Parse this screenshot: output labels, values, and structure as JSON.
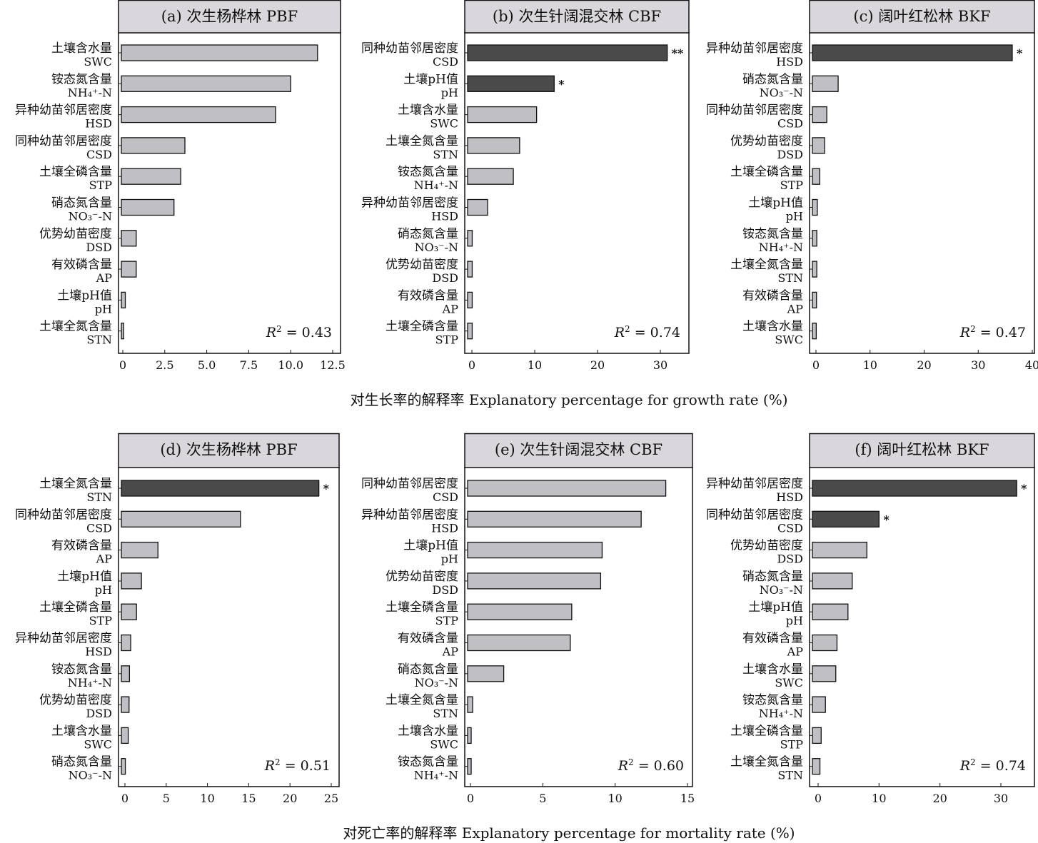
{
  "colors": {
    "bar_default": "#c0bfc4",
    "bar_significant": "#4a4a4a",
    "title_fill": "#d9d7db"
  },
  "chart_data": [
    {
      "type": "bar",
      "orientation": "horizontal",
      "title": "(a) 次生杨桦林 PBF",
      "r2_label": "R",
      "r2_value": "= 0.43",
      "xlim": [
        0,
        12.5
      ],
      "xticks": [
        "0",
        "2.5",
        "5.0",
        "7.5",
        "10.0",
        "12.5"
      ],
      "xtick_values": [
        0,
        2.5,
        5,
        7.5,
        10,
        12.5
      ],
      "bars": [
        {
          "cn": "土壤含水量",
          "en": "SWC",
          "value": 11.6,
          "sig": ""
        },
        {
          "cn": "铵态氮含量",
          "en": "NH₄⁺-N",
          "value": 10.0,
          "sig": ""
        },
        {
          "cn": "异种幼苗邻居密度",
          "en": "HSD",
          "value": 9.1,
          "sig": ""
        },
        {
          "cn": "同种幼苗邻居密度",
          "en": "CSD",
          "value": 3.7,
          "sig": ""
        },
        {
          "cn": "土壤全磷含量",
          "en": "STP",
          "value": 3.45,
          "sig": ""
        },
        {
          "cn": "硝态氮含量",
          "en": "NO₃⁻-N",
          "value": 3.05,
          "sig": ""
        },
        {
          "cn": "优势幼苗密度",
          "en": "DSD",
          "value": 0.8,
          "sig": ""
        },
        {
          "cn": "有效磷含量",
          "en": "AP",
          "value": 0.8,
          "sig": ""
        },
        {
          "cn": "土壤pH值",
          "en": "pH",
          "value": 0.15,
          "sig": ""
        },
        {
          "cn": "土壤全氮含量",
          "en": "STN",
          "value": 0.05,
          "sig": ""
        }
      ]
    },
    {
      "type": "bar",
      "orientation": "horizontal",
      "title": "(b) 次生针阔混交林 CBF",
      "r2_label": "R",
      "r2_value": "= 0.74",
      "xlim": [
        0,
        35
      ],
      "xticks": [
        "0",
        "10",
        "20",
        "30"
      ],
      "xtick_values": [
        0,
        10,
        20,
        30
      ],
      "bars": [
        {
          "cn": "同种幼苗邻居密度",
          "en": "CSD",
          "value": 31.1,
          "sig": "**"
        },
        {
          "cn": "土壤pH值",
          "en": "pH",
          "value": 13.1,
          "sig": "*"
        },
        {
          "cn": "土壤含水量",
          "en": "SWC",
          "value": 10.3,
          "sig": ""
        },
        {
          "cn": "土壤全氮含量",
          "en": "STN",
          "value": 7.6,
          "sig": ""
        },
        {
          "cn": "铵态氮含量",
          "en": "NH₄⁺-N",
          "value": 6.6,
          "sig": ""
        },
        {
          "cn": "异种幼苗邻居密度",
          "en": "HSD",
          "value": 2.5,
          "sig": ""
        },
        {
          "cn": "硝态氮含量",
          "en": "NO₃⁻-N",
          "value": 0.05,
          "sig": ""
        },
        {
          "cn": "优势幼苗密度",
          "en": "DSD",
          "value": 0.05,
          "sig": ""
        },
        {
          "cn": "有效磷含量",
          "en": "AP",
          "value": 0.05,
          "sig": ""
        },
        {
          "cn": "土壤全磷含量",
          "en": "STP",
          "value": 0.05,
          "sig": ""
        }
      ]
    },
    {
      "type": "bar",
      "orientation": "horizontal",
      "title": "(c) 阔叶红松林 BKF",
      "r2_label": "R",
      "r2_value": "= 0.47",
      "xlim": [
        0,
        40
      ],
      "xticks": [
        "0",
        "10",
        "20",
        "30",
        "40"
      ],
      "xtick_values": [
        0,
        10,
        20,
        30,
        40
      ],
      "bars": [
        {
          "cn": "异种幼苗邻居密度",
          "en": "HSD",
          "value": 36.3,
          "sig": "*"
        },
        {
          "cn": "硝态氮含量",
          "en": "NO₃⁻-N",
          "value": 4.1,
          "sig": ""
        },
        {
          "cn": "同种幼苗邻居密度",
          "en": "CSD",
          "value": 2.0,
          "sig": ""
        },
        {
          "cn": "优势幼苗密度",
          "en": "DSD",
          "value": 1.6,
          "sig": ""
        },
        {
          "cn": "土壤全磷含量",
          "en": "STP",
          "value": 0.7,
          "sig": ""
        },
        {
          "cn": "土壤pH值",
          "en": "pH",
          "value": 0.25,
          "sig": ""
        },
        {
          "cn": "铵态氮含量",
          "en": "NH₄⁺-N",
          "value": 0.15,
          "sig": ""
        },
        {
          "cn": "土壤全氮含量",
          "en": "STN",
          "value": 0.15,
          "sig": ""
        },
        {
          "cn": "有效磷含量",
          "en": "AP",
          "value": 0.1,
          "sig": ""
        },
        {
          "cn": "土壤含水量",
          "en": "SWC",
          "value": 0.05,
          "sig": ""
        }
      ]
    },
    {
      "type": "bar",
      "orientation": "horizontal",
      "title": "(d) 次生杨桦林 PBF",
      "r2_label": "R",
      "r2_value": "= 0.51",
      "xlim": [
        0,
        25
      ],
      "xticks": [
        "0",
        "5",
        "10",
        "15",
        "20",
        "25"
      ],
      "xtick_values": [
        0,
        5,
        10,
        15,
        20,
        25
      ],
      "bars": [
        {
          "cn": "土壤全氮含量",
          "en": "STN",
          "value": 23.5,
          "sig": "*"
        },
        {
          "cn": "同种幼苗邻居密度",
          "en": "CSD",
          "value": 14.0,
          "sig": ""
        },
        {
          "cn": "有效磷含量",
          "en": "AP",
          "value": 4.0,
          "sig": ""
        },
        {
          "cn": "土壤pH值",
          "en": "pH",
          "value": 2.0,
          "sig": ""
        },
        {
          "cn": "土壤全磷含量",
          "en": "STP",
          "value": 1.4,
          "sig": ""
        },
        {
          "cn": "异种幼苗邻居密度",
          "en": "HSD",
          "value": 0.7,
          "sig": ""
        },
        {
          "cn": "铵态氮含量",
          "en": "NH₄⁺-N",
          "value": 0.55,
          "sig": ""
        },
        {
          "cn": "优势幼苗密度",
          "en": "DSD",
          "value": 0.5,
          "sig": ""
        },
        {
          "cn": "土壤含水量",
          "en": "SWC",
          "value": 0.4,
          "sig": ""
        },
        {
          "cn": "硝态氮含量",
          "en": "NO₃⁻-N",
          "value": 0.05,
          "sig": ""
        }
      ]
    },
    {
      "type": "bar",
      "orientation": "horizontal",
      "title": "(e) 次生针阔混交林 CBF",
      "r2_label": "R",
      "r2_value": "= 0.60",
      "xlim": [
        0,
        15
      ],
      "xticks": [
        "0",
        "5",
        "10",
        "15"
      ],
      "xtick_values": [
        0,
        5,
        10,
        15
      ],
      "bars": [
        {
          "cn": "同种幼苗邻居密度",
          "en": "CSD",
          "value": 13.5,
          "sig": ""
        },
        {
          "cn": "异种幼苗邻居密度",
          "en": "HSD",
          "value": 11.8,
          "sig": ""
        },
        {
          "cn": "土壤pH值",
          "en": "pH",
          "value": 9.1,
          "sig": ""
        },
        {
          "cn": "优势幼苗密度",
          "en": "DSD",
          "value": 9.0,
          "sig": ""
        },
        {
          "cn": "土壤全磷含量",
          "en": "STP",
          "value": 7.0,
          "sig": ""
        },
        {
          "cn": "有效磷含量",
          "en": "AP",
          "value": 6.9,
          "sig": ""
        },
        {
          "cn": "硝态氮含量",
          "en": "NO₃⁻-N",
          "value": 2.3,
          "sig": ""
        },
        {
          "cn": "土壤全氮含量",
          "en": "STN",
          "value": 0.15,
          "sig": ""
        },
        {
          "cn": "土壤含水量",
          "en": "SWC",
          "value": 0.05,
          "sig": ""
        },
        {
          "cn": "铵态氮含量",
          "en": "NH₄⁺-N",
          "value": 0.05,
          "sig": ""
        }
      ]
    },
    {
      "type": "bar",
      "orientation": "horizontal",
      "title": "(f) 阔叶红松林 BKF",
      "r2_label": "R",
      "r2_value": "= 0.74",
      "xlim": [
        0,
        35
      ],
      "xticks": [
        "0",
        "10",
        "20",
        "30"
      ],
      "xtick_values": [
        0,
        10,
        20,
        30
      ],
      "bars": [
        {
          "cn": "异种幼苗邻居密度",
          "en": "HSD",
          "value": 32.6,
          "sig": "*"
        },
        {
          "cn": "同种幼苗邻居密度",
          "en": "CSD",
          "value": 10.0,
          "sig": "*"
        },
        {
          "cn": "优势幼苗密度",
          "en": "DSD",
          "value": 8.0,
          "sig": ""
        },
        {
          "cn": "硝态氮含量",
          "en": "NO₃⁻-N",
          "value": 5.6,
          "sig": ""
        },
        {
          "cn": "土壤pH值",
          "en": "pH",
          "value": 4.9,
          "sig": ""
        },
        {
          "cn": "有效磷含量",
          "en": "AP",
          "value": 3.1,
          "sig": ""
        },
        {
          "cn": "土壤含水量",
          "en": "SWC",
          "value": 2.9,
          "sig": ""
        },
        {
          "cn": "铵态氮含量",
          "en": "NH₄⁺-N",
          "value": 1.2,
          "sig": ""
        },
        {
          "cn": "土壤全磷含量",
          "en": "STP",
          "value": 0.5,
          "sig": ""
        },
        {
          "cn": "土壤全氮含量",
          "en": "STN",
          "value": 0.3,
          "sig": ""
        }
      ]
    }
  ],
  "xlabels": {
    "growth": "对生长率的解释率 Explanatory percentage for growth rate (%)",
    "mortality": "对死亡率的解释率 Explanatory percentage for mortality rate (%)"
  }
}
